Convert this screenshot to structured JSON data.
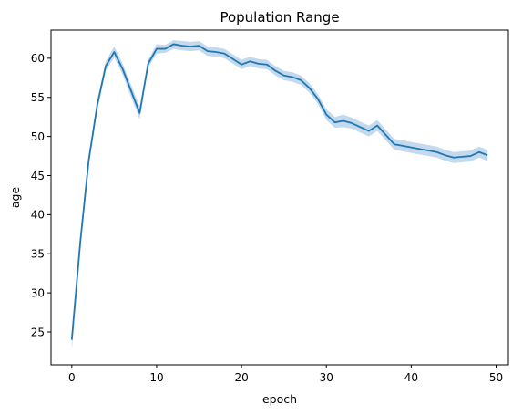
{
  "chart_data": {
    "type": "line",
    "title": "Population Range",
    "xlabel": "epoch",
    "ylabel": "age",
    "xlim": [
      -2.45,
      51.45
    ],
    "ylim": [
      20.8,
      63.6
    ],
    "xticks": [
      0,
      10,
      20,
      30,
      40,
      50
    ],
    "yticks": [
      25,
      30,
      35,
      40,
      45,
      50,
      55,
      60
    ],
    "grid": false,
    "legend": "none",
    "series_color": "#1f77b4",
    "band_color": "#c4d9ec",
    "x": [
      0,
      1,
      2,
      3,
      4,
      5,
      6,
      7,
      8,
      9,
      10,
      11,
      12,
      13,
      14,
      15,
      16,
      17,
      18,
      19,
      20,
      21,
      22,
      23,
      24,
      25,
      26,
      27,
      28,
      29,
      30,
      31,
      32,
      33,
      34,
      35,
      36,
      37,
      38,
      39,
      40,
      41,
      42,
      43,
      44,
      45,
      46,
      47,
      48,
      49
    ],
    "mean": [
      24.0,
      36.5,
      47.0,
      54.0,
      59.0,
      60.8,
      58.6,
      55.8,
      53.0,
      59.3,
      61.2,
      61.2,
      61.8,
      61.6,
      61.5,
      61.6,
      60.9,
      60.8,
      60.6,
      59.9,
      59.2,
      59.6,
      59.3,
      59.2,
      58.4,
      57.8,
      57.6,
      57.2,
      56.2,
      54.8,
      52.8,
      51.8,
      52.0,
      51.7,
      51.2,
      50.7,
      51.4,
      50.2,
      49.0,
      48.8,
      48.6,
      48.4,
      48.2,
      48.0,
      47.6,
      47.3,
      47.4,
      47.5,
      48.0,
      47.6
    ],
    "lower": [
      22.7,
      35.8,
      46.3,
      53.4,
      58.4,
      60.1,
      57.9,
      55.0,
      52.2,
      58.8,
      60.6,
      60.7,
      61.2,
      61.0,
      60.9,
      61.0,
      60.3,
      60.2,
      60.0,
      59.3,
      58.6,
      59.0,
      58.7,
      58.6,
      57.8,
      57.2,
      57.0,
      56.6,
      55.6,
      54.2,
      52.1,
      51.1,
      51.2,
      51.0,
      50.5,
      50.0,
      50.7,
      49.5,
      48.3,
      48.1,
      47.9,
      47.7,
      47.5,
      47.3,
      46.9,
      46.6,
      46.7,
      46.8,
      47.3,
      46.9
    ],
    "upper": [
      25.1,
      37.2,
      47.7,
      54.6,
      59.6,
      61.5,
      59.3,
      56.6,
      53.8,
      59.8,
      61.8,
      61.7,
      62.3,
      62.2,
      62.1,
      62.2,
      61.5,
      61.4,
      61.2,
      60.5,
      59.8,
      60.2,
      59.9,
      59.8,
      59.0,
      58.4,
      58.2,
      57.8,
      56.8,
      55.4,
      53.5,
      52.5,
      52.8,
      52.4,
      51.9,
      51.4,
      52.1,
      50.9,
      49.7,
      49.5,
      49.3,
      49.1,
      48.9,
      48.7,
      48.3,
      48.0,
      48.1,
      48.2,
      48.7,
      48.3
    ]
  }
}
